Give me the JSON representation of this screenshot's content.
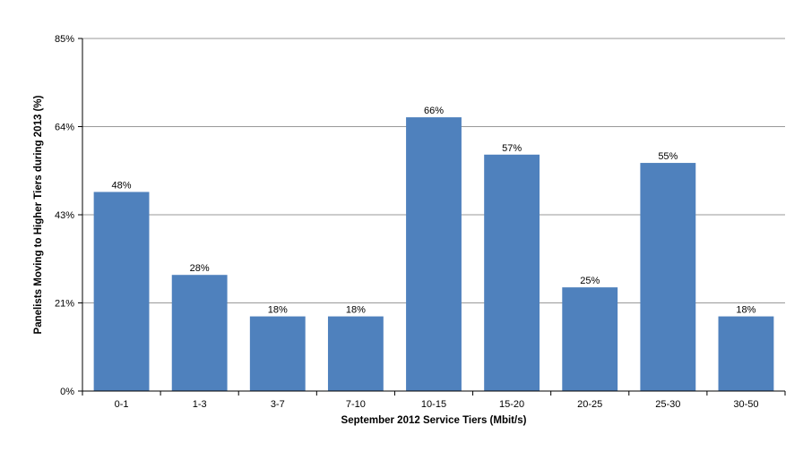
{
  "chart_data": {
    "type": "bar",
    "title": "",
    "xlabel": "September 2012 Service Tiers (Mbit/s)",
    "ylabel": "Panelists Moving to Higher Tiers during 2013 (%)",
    "categories": [
      "0-1",
      "1-3",
      "3-7",
      "7-10",
      "10-15",
      "15-20",
      "20-25",
      "25-30",
      "30-50"
    ],
    "values": [
      48,
      28,
      18,
      18,
      66,
      57,
      25,
      55,
      18
    ],
    "data_labels": [
      "48%",
      "28%",
      "18%",
      "18%",
      "66%",
      "57%",
      "25%",
      "55%",
      "18%"
    ],
    "y_ticks": [
      0,
      21.25,
      42.5,
      63.75,
      85
    ],
    "y_tick_labels": [
      "0%",
      "21%",
      "43%",
      "64%",
      "85%"
    ],
    "ylim": [
      0,
      85
    ],
    "grid": true,
    "legend": "none",
    "bar_color": "#4f81bd",
    "grid_color": "#999999"
  }
}
